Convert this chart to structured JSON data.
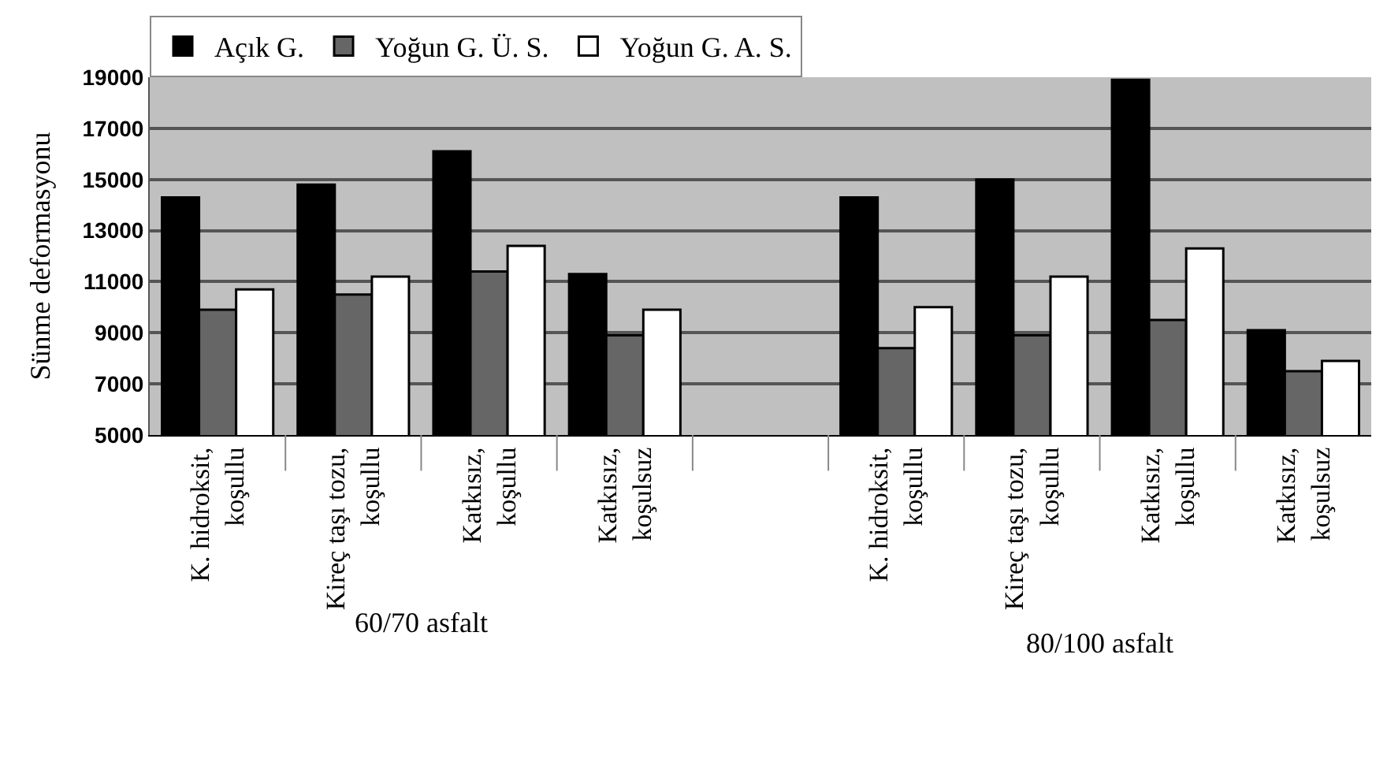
{
  "chart_data": {
    "type": "bar",
    "ylabel": "Sünme deformasyonu",
    "categories": [
      "K. hidroksit,\nkoşullu",
      "Kireç taşı tozu,\nkoşullu",
      "Katkısız,\nkoşullu",
      "Katkısız,\nkoşulsuz",
      null,
      "K. hidroksit,\nkoşullu",
      "Kireç taşı tozu,\nkoşullu",
      "Katkısız,\nkoşullu",
      "Katkısız,\nkoşulsuz"
    ],
    "series": [
      {
        "name": "Açık G.",
        "color": "#000000",
        "values": [
          14300,
          14800,
          16100,
          11300,
          null,
          14300,
          15000,
          18900,
          9100
        ]
      },
      {
        "name": "Yoğun G. Ü. S.",
        "color": "#666666",
        "values": [
          9900,
          10500,
          11400,
          8900,
          null,
          8400,
          8900,
          9500,
          7500
        ]
      },
      {
        "name": "Yoğun G. A. S.",
        "color": "#ffffff",
        "values": [
          10700,
          11200,
          12400,
          9900,
          null,
          10000,
          11200,
          12300,
          7900
        ]
      }
    ],
    "annotations": [
      "60/70 asfalt",
      "80/100 asfalt"
    ],
    "ylim": [
      5000,
      19000
    ],
    "yticks": [
      5000,
      7000,
      9000,
      11000,
      13000,
      15000,
      17000,
      19000
    ],
    "grid": "y",
    "legend": "top left"
  }
}
